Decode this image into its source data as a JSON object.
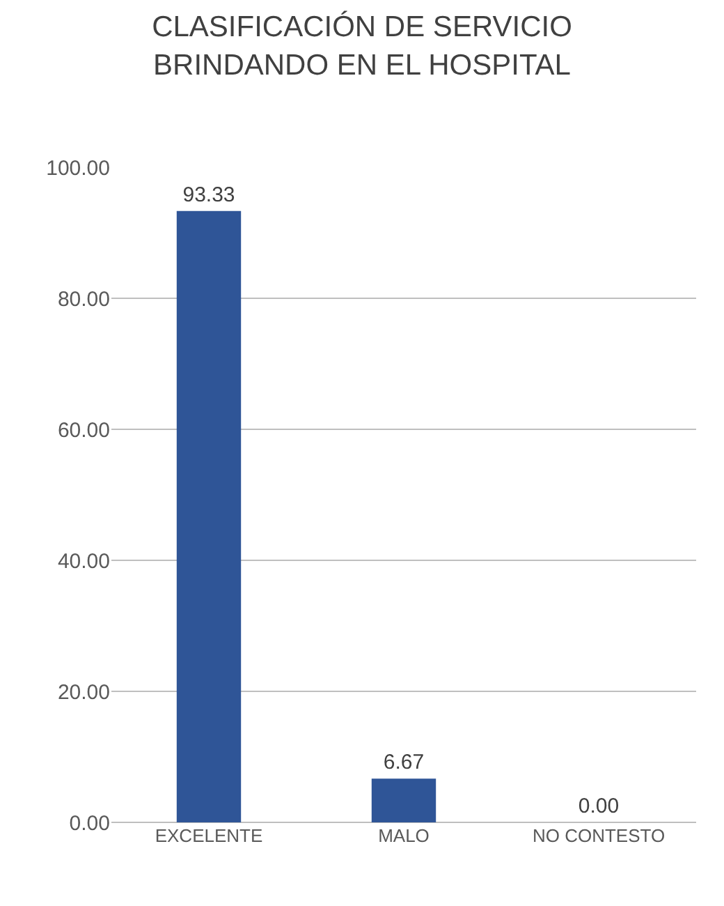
{
  "chart_data": {
    "type": "bar",
    "title": "CLASIFICACIÓN DE SERVICIO\nBRINDANDO EN EL HOSPITAL",
    "categories": [
      "EXCELENTE",
      "MALO",
      "NO CONTESTO"
    ],
    "values": [
      93.33,
      6.67,
      0.0
    ],
    "color": "#2f5597",
    "ylim": [
      0,
      100
    ],
    "yticks": [
      {
        "value": 0,
        "label": "0.00"
      },
      {
        "value": 20,
        "label": "20.00"
      },
      {
        "value": 40,
        "label": "40.00"
      },
      {
        "value": 60,
        "label": "60.00"
      },
      {
        "value": 80,
        "label": "80.00"
      },
      {
        "value": 100,
        "label": "100.00"
      }
    ],
    "value_labels": [
      "93.33",
      "6.67",
      "0.00"
    ],
    "grid": "y",
    "legend": false
  }
}
